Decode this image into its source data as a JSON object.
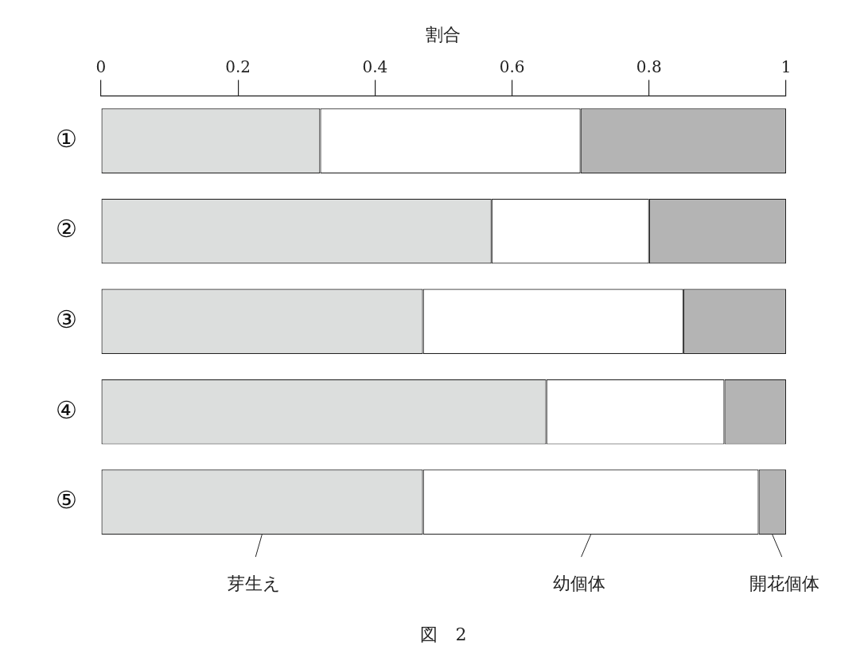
{
  "chart_data": {
    "type": "bar",
    "orientation": "horizontal",
    "stacked": true,
    "xlabel": "割合",
    "categories": [
      "①",
      "②",
      "③",
      "④",
      "⑤"
    ],
    "xlim": [
      0,
      1
    ],
    "xticks": [
      0,
      0.2,
      0.4,
      0.6,
      0.8,
      1
    ],
    "grid": false,
    "series": [
      {
        "name": "芽生え",
        "color": "#dcdedd",
        "values": [
          0.32,
          0.57,
          0.47,
          0.65,
          0.47
        ]
      },
      {
        "name": "幼個体",
        "color": "#ffffff",
        "values": [
          0.38,
          0.23,
          0.38,
          0.26,
          0.49
        ]
      },
      {
        "name": "開花個体",
        "color": "#b4b4b4",
        "values": [
          0.3,
          0.2,
          0.15,
          0.09,
          0.04
        ]
      }
    ],
    "annotations": [
      "図　2"
    ]
  }
}
